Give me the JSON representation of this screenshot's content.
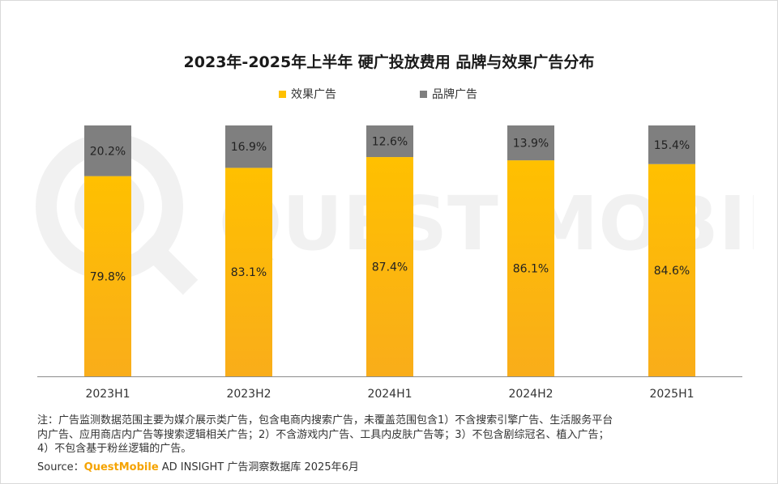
{
  "title": "2023年-2025年上半年 硬广投放费用 品牌与效果广告分布",
  "colors": {
    "effect": "#ffc000",
    "brand": "#7f7f7f",
    "source_brand": "#f5a300"
  },
  "watermark": "QUEST MOBILE",
  "chart_data": {
    "type": "bar",
    "stacked": true,
    "categories": [
      "2023H1",
      "2023H2",
      "2024H1",
      "2024H2",
      "2025H1"
    ],
    "series": [
      {
        "name": "效果广告",
        "values": [
          79.8,
          83.1,
          87.4,
          86.1,
          84.6
        ],
        "labels": [
          "79.8%",
          "83.1%",
          "87.4%",
          "86.1%",
          "84.6%"
        ]
      },
      {
        "name": "品牌广告",
        "values": [
          20.2,
          16.9,
          12.6,
          13.9,
          15.4
        ],
        "labels": [
          "20.2%",
          "16.9%",
          "12.6%",
          "13.9%",
          "15.4%"
        ]
      }
    ],
    "ylim": [
      0,
      100
    ],
    "legend_position": "top",
    "grid": false
  },
  "notes": [
    "注：广告监测数据范围主要为媒介展示类广告，包含电商内搜索广告，未覆盖范围包含1）不含搜索引擎广告、生活服务平台",
    "内广告、应用商店内广告等搜索逻辑相关广告；2）不含游戏内广告、工具内皮肤广告等；3）不包含剧综冠名、植入广告；",
    "4）不包含基于粉丝逻辑的广告。"
  ],
  "source": {
    "prefix": "Source：",
    "brand": "QuestMobile",
    "rest": " AD INSIGHT 广告洞察数据库 2025年6月"
  }
}
